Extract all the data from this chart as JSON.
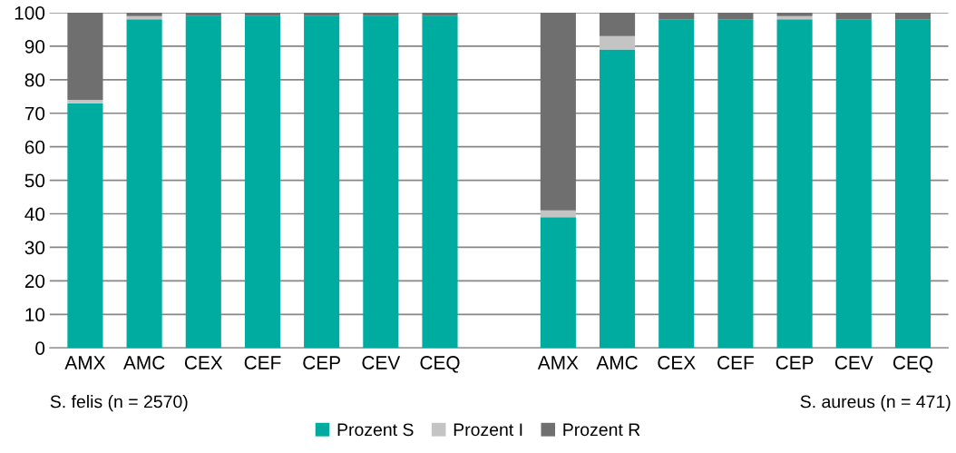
{
  "chart_data": {
    "type": "bar",
    "stacked": true,
    "categories": [
      "AMX",
      "AMC",
      "CEX",
      "CEF",
      "CEP",
      "CEV",
      "CEQ",
      null,
      "AMX",
      "AMC",
      "CEX",
      "CEF",
      "CEP",
      "CEV",
      "CEQ"
    ],
    "series": [
      {
        "name": "Prozent S",
        "color": "#00ab9f",
        "values": [
          73,
          98,
          99,
          99,
          99,
          99,
          99,
          null,
          39,
          89,
          98,
          98,
          98,
          98,
          98
        ]
      },
      {
        "name": "Prozent I",
        "color": "#c4c4c4",
        "values": [
          1,
          1,
          0,
          0,
          0,
          0,
          0,
          null,
          2,
          4,
          0,
          0,
          1,
          0,
          0
        ]
      },
      {
        "name": "Prozent R",
        "color": "#6f6f6f",
        "values": [
          26,
          1,
          1,
          1,
          1,
          1,
          1,
          null,
          59,
          7,
          2,
          2,
          1,
          2,
          2
        ]
      }
    ],
    "ylim": [
      0,
      100
    ],
    "yticks": [
      0,
      10,
      20,
      30,
      40,
      50,
      60,
      70,
      80,
      90,
      100
    ],
    "grid": "y",
    "legend": "bottom",
    "annotations": [
      "S. felis (n = 2570)",
      "S. aureus (n = 471)"
    ]
  }
}
